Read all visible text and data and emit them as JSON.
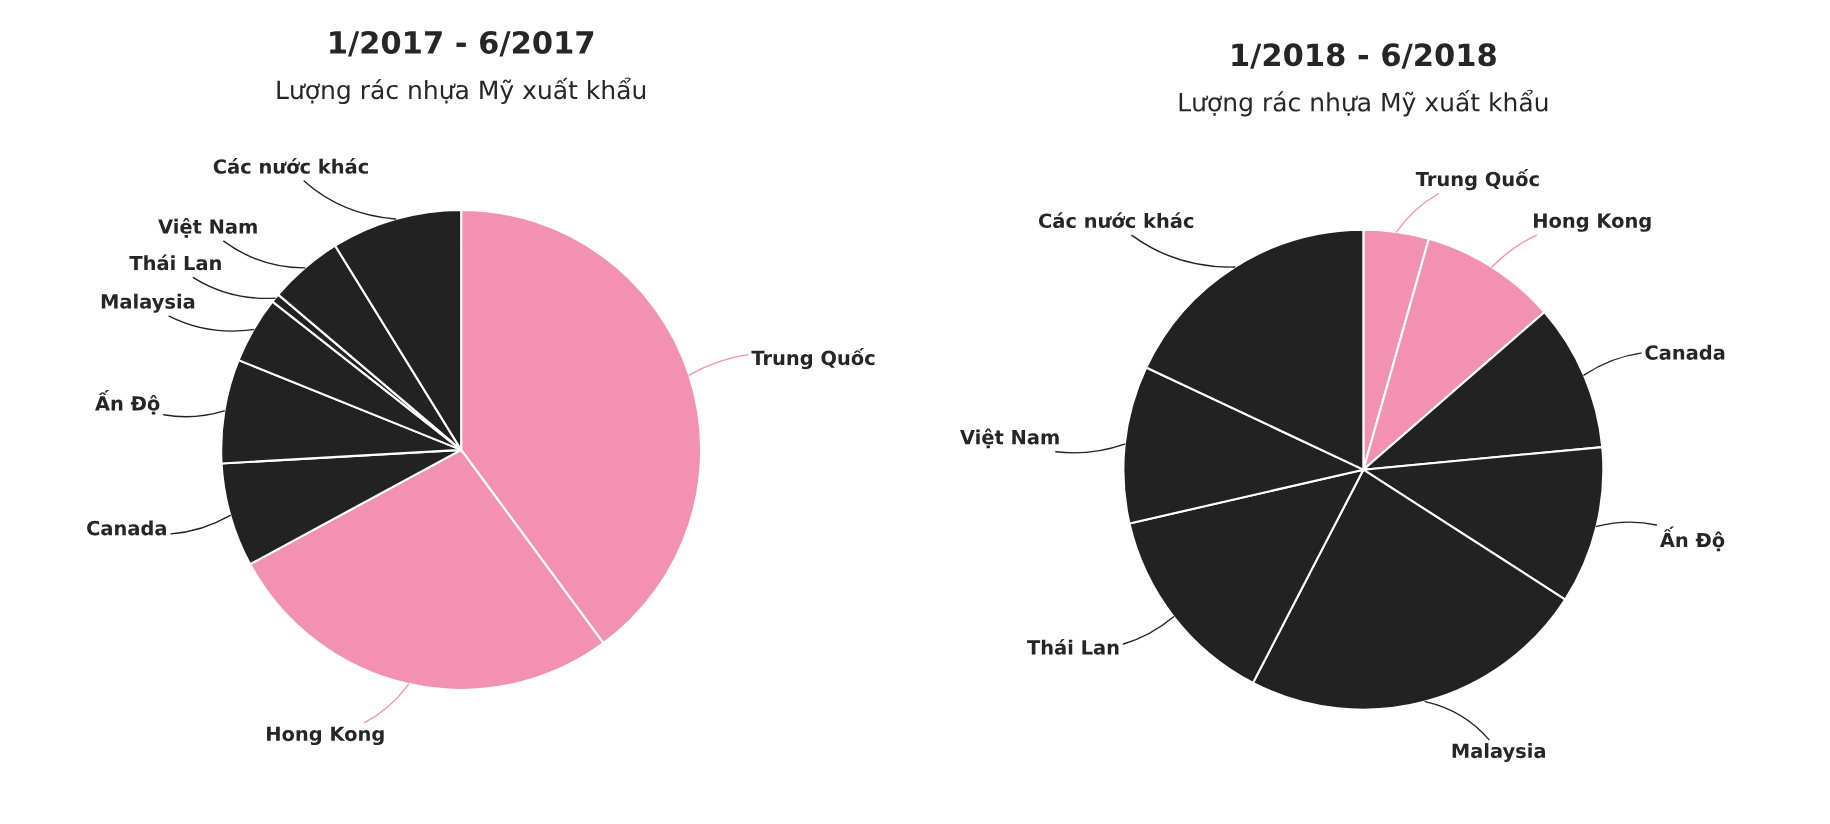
{
  "chart_data": [
    {
      "type": "pie",
      "title": "1/2017 - 6/2017",
      "subtitle": "Lượng rác nhựa Mỹ xuất khẩu",
      "categories": [
        "Trung Quốc",
        "Hong Kong",
        "Canada",
        "Ấn Độ",
        "Malaysia",
        "Thái Lan",
        "Việt Nam",
        "Các nước khác"
      ],
      "values": [
        39.9,
        27.2,
        7.0,
        7.0,
        4.5,
        0.6,
        5.0,
        8.8
      ],
      "colors": [
        "#f391b3",
        "#f391b3",
        "#222222",
        "#222222",
        "#222222",
        "#222222",
        "#222222",
        "#222222"
      ],
      "legend": false
    },
    {
      "type": "pie",
      "title": "1/2018 - 6/2018",
      "subtitle": "Lượng rác nhựa Mỹ xuất khẩu",
      "categories": [
        "Trung Quốc",
        "Hong Kong",
        "Canada",
        "Ấn Độ",
        "Malaysia",
        "Thái Lan",
        "Việt Nam",
        "Các nước khác"
      ],
      "values": [
        4.4,
        9.2,
        9.9,
        10.6,
        23.5,
        13.8,
        10.6,
        18.0
      ],
      "colors": [
        "#f391b3",
        "#f391b3",
        "#222222",
        "#222222",
        "#222222",
        "#222222",
        "#222222",
        "#222222"
      ],
      "legend": false
    }
  ]
}
